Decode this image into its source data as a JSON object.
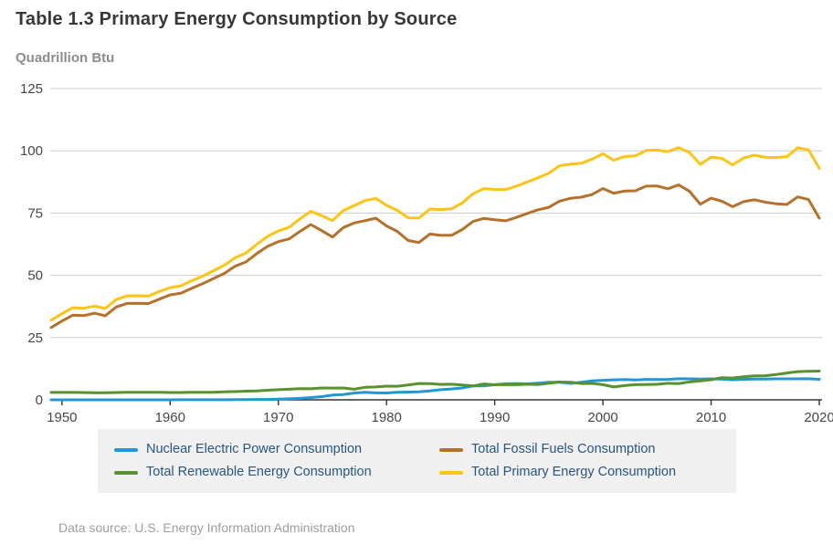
{
  "header": {
    "title": "Table 1.3 Primary Energy Consumption by Source",
    "unit": "Quadrillion Btu"
  },
  "footer": {
    "source": "Data source: U.S. Energy Information Administration"
  },
  "style": {
    "title_color": "#373737",
    "unit_color": "#8c8c8c",
    "grid_color": "#cccccc",
    "axis_color": "#333333",
    "tick_label_color": "#464646",
    "legend_bg": "#f0f0f0",
    "legend_text_color": "#28567d",
    "footer_color": "#9e9e9e"
  },
  "chart_data": {
    "type": "line",
    "title": "Table 1.3 Primary Energy Consumption by Source",
    "xlabel": "",
    "ylabel": "Quadrillion Btu",
    "xlim": [
      1949,
      2020
    ],
    "ylim": [
      0,
      125
    ],
    "y_ticks": [
      0,
      25,
      50,
      75,
      100,
      125
    ],
    "x_ticks": [
      1950,
      1960,
      1970,
      1980,
      1990,
      2000,
      2010,
      2020
    ],
    "grid": "horizontal",
    "legend_position": "bottom",
    "years": [
      1949,
      1950,
      1951,
      1952,
      1953,
      1954,
      1955,
      1956,
      1957,
      1958,
      1959,
      1960,
      1961,
      1962,
      1963,
      1964,
      1965,
      1966,
      1967,
      1968,
      1969,
      1970,
      1971,
      1972,
      1973,
      1974,
      1975,
      1976,
      1977,
      1978,
      1979,
      1980,
      1981,
      1982,
      1983,
      1984,
      1985,
      1986,
      1987,
      1988,
      1989,
      1990,
      1991,
      1992,
      1993,
      1994,
      1995,
      1996,
      1997,
      1998,
      1999,
      2000,
      2001,
      2002,
      2003,
      2004,
      2005,
      2006,
      2007,
      2008,
      2009,
      2010,
      2011,
      2012,
      2013,
      2014,
      2015,
      2016,
      2017,
      2018,
      2019,
      2020
    ],
    "series": [
      {
        "name": "Nuclear Electric Power Consumption",
        "color": "#2397d3",
        "values": [
          0,
          0,
          0,
          0,
          0,
          0,
          0,
          0,
          0,
          0.002,
          0.002,
          0.006,
          0.02,
          0.03,
          0.04,
          0.04,
          0.04,
          0.06,
          0.09,
          0.14,
          0.15,
          0.24,
          0.41,
          0.58,
          0.91,
          1.27,
          1.9,
          2.11,
          2.7,
          3.02,
          2.78,
          2.74,
          3.01,
          3.13,
          3.2,
          3.55,
          4.08,
          4.38,
          4.75,
          5.59,
          5.6,
          6.1,
          6.42,
          6.48,
          6.41,
          6.69,
          7.08,
          7.09,
          6.6,
          7.07,
          7.61,
          7.86,
          8.03,
          8.14,
          7.96,
          8.22,
          8.16,
          8.21,
          8.46,
          8.43,
          8.36,
          8.43,
          8.27,
          8.06,
          8.24,
          8.34,
          8.34,
          8.42,
          8.42,
          8.44,
          8.46,
          8.25
        ]
      },
      {
        "name": "Total Fossil Fuels Consumption",
        "color": "#b5702a",
        "values": [
          29.0,
          31.63,
          33.98,
          33.8,
          34.79,
          33.76,
          37.26,
          38.71,
          38.78,
          38.66,
          40.43,
          42.14,
          42.8,
          44.78,
          46.61,
          48.72,
          50.74,
          53.66,
          55.35,
          58.71,
          61.61,
          63.52,
          64.61,
          67.64,
          70.37,
          67.95,
          65.36,
          69.13,
          71.05,
          71.93,
          72.95,
          69.83,
          67.62,
          63.98,
          63.21,
          66.56,
          66.09,
          66.06,
          68.39,
          71.61,
          72.86,
          72.33,
          71.89,
          73.24,
          74.82,
          76.32,
          77.3,
          79.8,
          80.93,
          81.39,
          82.45,
          84.86,
          82.98,
          83.83,
          83.94,
          85.82,
          85.89,
          84.76,
          86.31,
          83.73,
          78.57,
          80.99,
          79.76,
          77.55,
          79.57,
          80.35,
          79.36,
          78.75,
          78.43,
          81.48,
          80.43,
          72.94
        ]
      },
      {
        "name": "Total Renewable Energy Consumption",
        "color": "#57922e",
        "values": [
          2.97,
          2.98,
          2.96,
          2.94,
          2.85,
          2.87,
          2.94,
          3.02,
          3.01,
          2.99,
          3.04,
          2.93,
          2.92,
          3.02,
          3.01,
          3.06,
          3.24,
          3.3,
          3.48,
          3.56,
          3.85,
          4.07,
          4.27,
          4.48,
          4.43,
          4.77,
          4.72,
          4.77,
          4.25,
          5.04,
          5.17,
          5.49,
          5.47,
          5.99,
          6.56,
          6.52,
          6.19,
          6.25,
          5.99,
          5.56,
          6.37,
          6.04,
          6.12,
          6.07,
          6.26,
          6.15,
          6.65,
          7.13,
          7.08,
          6.56,
          6.6,
          6.1,
          5.16,
          5.73,
          6.07,
          6.12,
          6.23,
          6.65,
          6.52,
          7.19,
          7.6,
          8.06,
          8.91,
          8.76,
          9.29,
          9.6,
          9.66,
          10.15,
          10.78,
          11.33,
          11.45,
          11.54
        ]
      },
      {
        "name": "Total Primary Energy Consumption",
        "color": "#fdc413",
        "values": [
          31.98,
          34.62,
          36.97,
          36.75,
          37.66,
          36.64,
          40.21,
          41.75,
          41.79,
          41.65,
          43.47,
          45.09,
          45.74,
          47.83,
          49.65,
          51.82,
          54.02,
          57.02,
          58.91,
          62.42,
          65.62,
          67.84,
          69.29,
          72.7,
          75.71,
          73.99,
          72.0,
          76.01,
          78.0,
          79.99,
          80.9,
          78.07,
          76.11,
          73.1,
          72.97,
          76.63,
          76.39,
          76.69,
          79.12,
          82.76,
          84.83,
          84.49,
          84.44,
          85.79,
          87.49,
          89.16,
          91.03,
          94.02,
          94.61,
          95.02,
          96.66,
          98.82,
          96.17,
          97.7,
          97.97,
          100.16,
          100.28,
          99.62,
          101.29,
          99.35,
          94.53,
          97.48,
          96.94,
          94.37,
          97.1,
          98.29,
          97.36,
          97.32,
          97.63,
          101.25,
          100.34,
          92.97
        ]
      }
    ]
  }
}
